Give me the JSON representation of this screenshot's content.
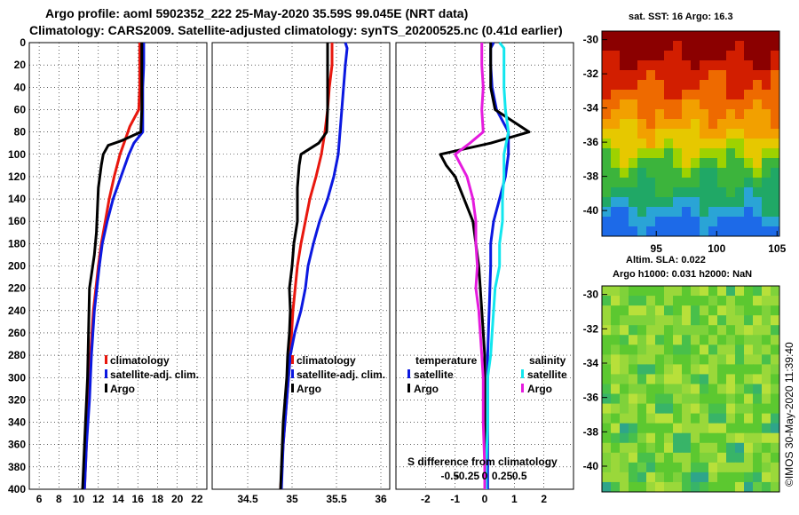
{
  "titles": {
    "line1": "Argo profile: aoml 5902352_222 25-May-2020 35.59S 99.045E (NRT data)",
    "line2": "Climatology: CARS2009. Satellite-adjusted climatology: synTS_20200525.nc (0.41d earlier)"
  },
  "colors": {
    "argo": "#000000",
    "climatology": "#e8170e",
    "satellite": "#0b18e0",
    "sat_salinity": "#12e6ee",
    "argo_salinity": "#e51bde"
  },
  "chart_data": [
    {
      "type": "line",
      "panel": "temperature",
      "ylim": [
        400,
        0
      ],
      "yticks": [
        0,
        20,
        40,
        60,
        80,
        100,
        120,
        140,
        160,
        180,
        200,
        220,
        240,
        260,
        280,
        300,
        320,
        340,
        360,
        380,
        400
      ],
      "xlim": [
        5,
        23
      ],
      "xticks": [
        6,
        8,
        10,
        12,
        14,
        16,
        18,
        20,
        22
      ],
      "legend": [
        "climatology",
        "satellite-adj. clim.",
        "Argo"
      ],
      "series": [
        {
          "name": "climatology",
          "color": "climatology",
          "depth": [
            0,
            20,
            40,
            60,
            75,
            90,
            100,
            120,
            140,
            160,
            180,
            200,
            240,
            280,
            320,
            360,
            400
          ],
          "values": [
            16.2,
            16.2,
            16.2,
            16.1,
            15.2,
            14.6,
            14.2,
            13.6,
            13.1,
            12.7,
            12.3,
            12.0,
            11.5,
            11.2,
            11.0,
            10.8,
            10.6
          ]
        },
        {
          "name": "satellite-adj. clim.",
          "color": "satellite",
          "depth": [
            0,
            20,
            40,
            60,
            80,
            90,
            100,
            120,
            140,
            160,
            180,
            200,
            240,
            280,
            320,
            360,
            400
          ],
          "values": [
            16.6,
            16.6,
            16.5,
            16.5,
            16.5,
            15.6,
            15.1,
            14.3,
            13.5,
            12.9,
            12.4,
            12.1,
            11.6,
            11.3,
            11.1,
            10.8,
            10.6
          ]
        },
        {
          "name": "Argo",
          "color": "argo",
          "depth": [
            0,
            20,
            40,
            60,
            80,
            88,
            92,
            100,
            110,
            130,
            150,
            170,
            190,
            220,
            260,
            300,
            340,
            380,
            400
          ],
          "values": [
            16.4,
            16.4,
            16.4,
            16.4,
            16.3,
            14.3,
            13.0,
            12.5,
            12.3,
            12.0,
            11.9,
            11.8,
            11.6,
            11.1,
            11.0,
            10.9,
            10.7,
            10.5,
            10.4
          ]
        }
      ]
    },
    {
      "type": "line",
      "panel": "salinity",
      "ylim": [
        400,
        0
      ],
      "xlim": [
        34.1,
        36.1
      ],
      "xticks": [
        34.5,
        35,
        35.5,
        36
      ],
      "legend": [
        "climatology",
        "satellite-adj. clim.",
        "Argo"
      ],
      "series": [
        {
          "name": "climatology",
          "color": "climatology",
          "depth": [
            0,
            20,
            40,
            60,
            80,
            100,
            120,
            140,
            160,
            180,
            200,
            240,
            280,
            320,
            360,
            400
          ],
          "values": [
            35.45,
            35.45,
            35.42,
            35.4,
            35.37,
            35.33,
            35.27,
            35.2,
            35.15,
            35.1,
            35.06,
            35.01,
            34.98,
            34.94,
            34.9,
            34.87
          ]
        },
        {
          "name": "satellite-adj. clim.",
          "color": "satellite",
          "depth": [
            0,
            5,
            20,
            40,
            60,
            80,
            100,
            120,
            140,
            160,
            180,
            200,
            220,
            240,
            260,
            280,
            320,
            360,
            400
          ],
          "values": [
            35.6,
            35.62,
            35.6,
            35.58,
            35.56,
            35.54,
            35.52,
            35.47,
            35.4,
            35.31,
            35.24,
            35.18,
            35.15,
            35.1,
            35.03,
            34.98,
            34.94,
            34.9,
            34.88
          ]
        },
        {
          "name": "Argo",
          "color": "argo",
          "depth": [
            0,
            20,
            40,
            60,
            80,
            90,
            100,
            110,
            120,
            130,
            140,
            160,
            180,
            200,
            220,
            240,
            260,
            280,
            300,
            340,
            380,
            400
          ],
          "values": [
            35.4,
            35.4,
            35.4,
            35.4,
            35.39,
            35.3,
            35.1,
            35.08,
            35.07,
            35.06,
            35.06,
            35.06,
            35.02,
            35.0,
            34.97,
            34.98,
            34.97,
            34.95,
            34.94,
            34.9,
            34.88,
            34.87
          ]
        }
      ]
    },
    {
      "type": "line",
      "panel": "difference",
      "ylim": [
        400,
        0
      ],
      "xlim": [
        -3,
        3
      ],
      "xticks": [
        -2,
        -1,
        0,
        1,
        2
      ],
      "xlabel": "S difference from climatology",
      "sticks": [
        -0.5,
        -0.25,
        0,
        0.25,
        0.5
      ],
      "legend_temperature": {
        "title": "temperature",
        "items": [
          "satellite",
          "Argo"
        ]
      },
      "legend_salinity": {
        "title": "salinity",
        "items": [
          "satellite",
          "Argo"
        ]
      },
      "series": [
        {
          "name": "temperature satellite",
          "color": "satellite",
          "depth": [
            0,
            5,
            20,
            40,
            60,
            80,
            100,
            120,
            140,
            160,
            180,
            200,
            240,
            280,
            320,
            360,
            400
          ],
          "values": [
            0.3,
            0.2,
            0.2,
            0.25,
            0.4,
            0.8,
            0.8,
            0.7,
            0.5,
            0.3,
            0.2,
            0.2,
            0.15,
            0.1,
            0.1,
            0.1,
            0.1
          ]
        },
        {
          "name": "temperature Argo",
          "color": "argo",
          "depth": [
            0,
            20,
            40,
            60,
            80,
            90,
            100,
            110,
            120,
            140,
            160,
            180,
            200,
            240,
            280,
            320,
            360,
            400
          ],
          "values": [
            0.2,
            0.2,
            0.2,
            0.35,
            1.5,
            0.2,
            -1.5,
            -1.3,
            -1.0,
            -0.7,
            -0.4,
            -0.3,
            -0.2,
            -0.1,
            0,
            0,
            0,
            0
          ]
        },
        {
          "name": "salinity satellite",
          "color": "sat_salinity",
          "depth": [
            0,
            5,
            20,
            40,
            60,
            80,
            100,
            120,
            140,
            160,
            180,
            200,
            220,
            240,
            260,
            280,
            300,
            340,
            380,
            400
          ],
          "values": [
            0.5,
            0.65,
            0.65,
            0.65,
            0.7,
            0.8,
            0.65,
            0.65,
            0.6,
            0.6,
            0.5,
            0.5,
            0.35,
            0.3,
            0.25,
            0.2,
            0.1,
            0.1,
            0.05,
            0.05
          ]
        },
        {
          "name": "salinity Argo",
          "color": "argo_salinity",
          "depth": [
            0,
            20,
            40,
            60,
            80,
            90,
            100,
            120,
            140,
            160,
            180,
            200,
            220,
            240,
            260,
            280,
            300,
            340,
            380,
            400
          ],
          "values": [
            -0.1,
            -0.1,
            -0.05,
            -0.1,
            -0.05,
            -0.5,
            -1.0,
            -0.6,
            -0.4,
            -0.3,
            -0.3,
            -0.25,
            -0.3,
            -0.2,
            -0.15,
            -0.1,
            -0.05,
            -0.05,
            0,
            0
          ]
        }
      ]
    },
    {
      "type": "heatmap",
      "panel": "sst_map",
      "title": "sat. SST: 16 Argo: 16.3",
      "ylim": [
        -41.5,
        -29.5
      ],
      "yticks": [
        -30,
        -32,
        -34,
        -36,
        -38,
        -40
      ],
      "xlim": [
        90.5,
        105.2
      ],
      "xticks": [
        95,
        100,
        105
      ]
    },
    {
      "type": "heatmap",
      "panel": "sla_map",
      "title1": "Altim. SLA: 0.022",
      "title2": "Argo h1000: 0.031 h2000: NaN",
      "ylim": [
        -41.5,
        -29.5
      ],
      "yticks": [
        -30,
        -32,
        -34,
        -36,
        -38,
        -40
      ]
    }
  ],
  "credit": "©IMOS 30-May-2020 11:39:40"
}
